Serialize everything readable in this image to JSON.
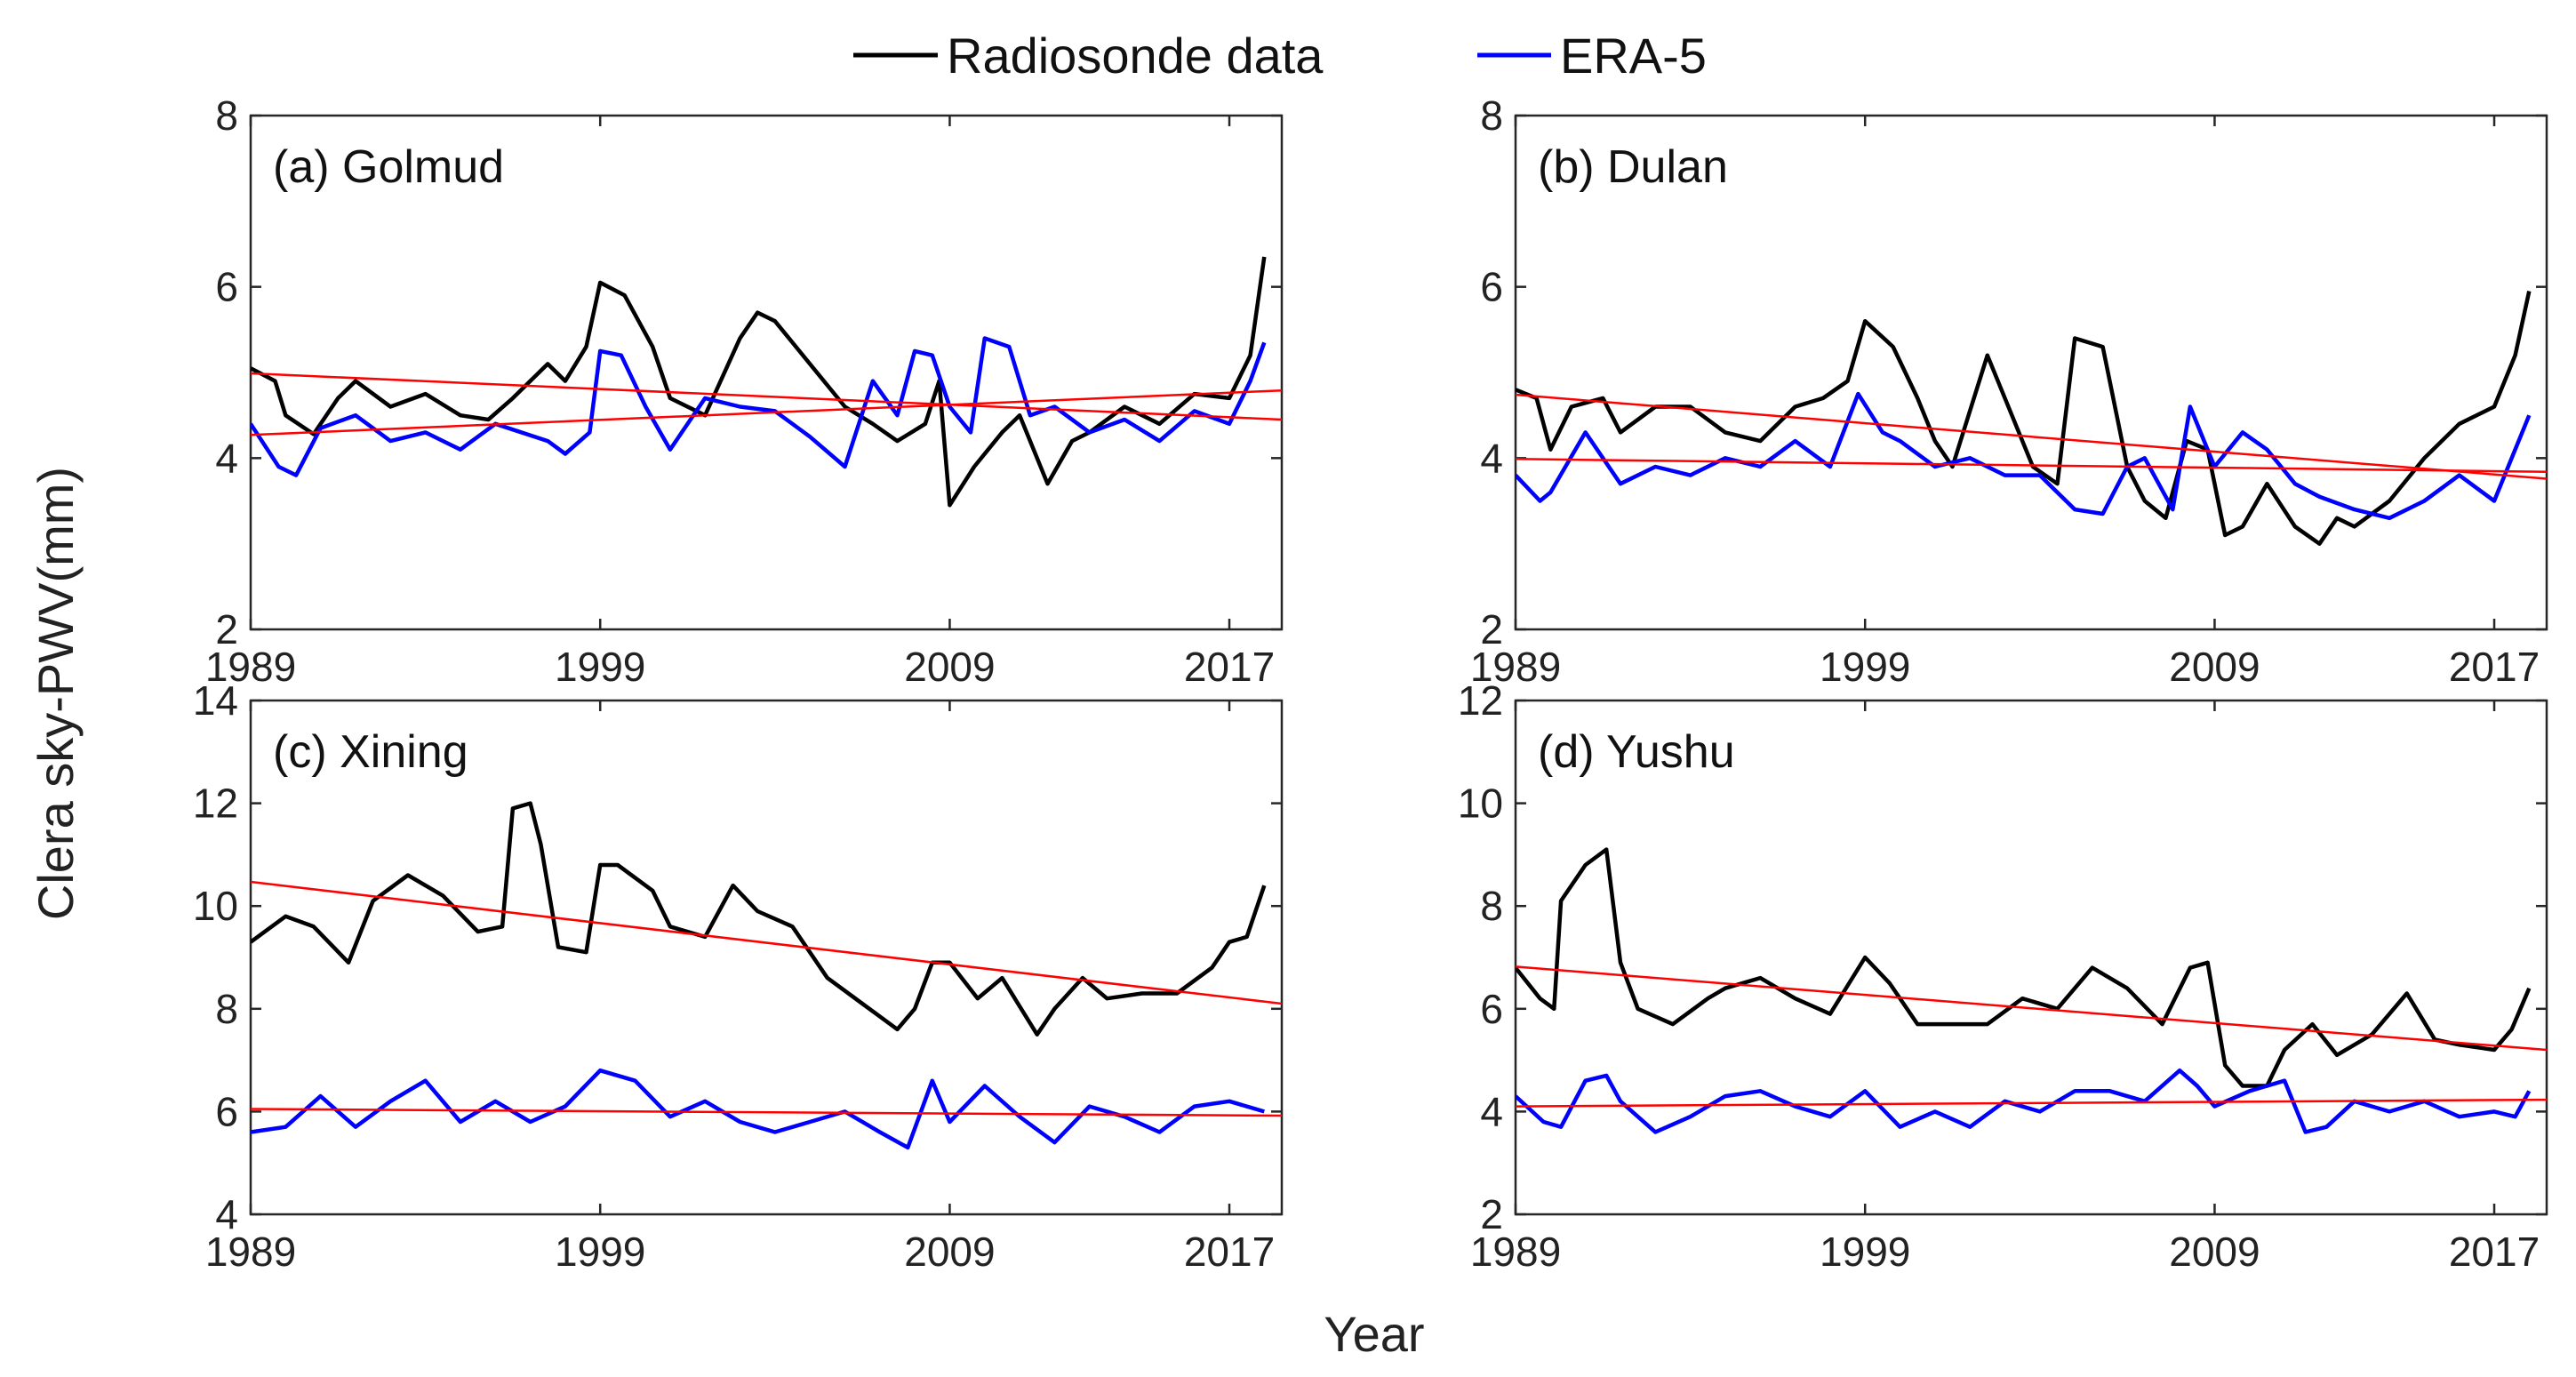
{
  "chart_data": {
    "type": "line",
    "legend": {
      "placement": "top-center",
      "entries": [
        {
          "name": "Radiosonde data",
          "color": "#000000"
        },
        {
          "name": "ERA-5",
          "color": "#0000ff"
        }
      ]
    },
    "ylabel": "Clera sky-PWV(mm)",
    "xlabel": "Year",
    "trend_color": "#ff0000",
    "panels": [
      {
        "title": "(a) Golmud",
        "xlim": [
          1989,
          2018.5
        ],
        "ylim": [
          2,
          8
        ],
        "xticks": [
          1989,
          1999,
          2009,
          2017
        ],
        "yticks": [
          2,
          4,
          6,
          8
        ],
        "series": [
          {
            "name": "Radiosonde data",
            "x": [
              1989,
              1989.7,
              1990,
              1990.8,
              1991.5,
              1992,
              1993,
              1994,
              1995,
              1995.8,
              1996.5,
              1997.5,
              1998,
              1998.6,
              1999,
              1999.7,
              2000.5,
              2001,
              2002,
              2003,
              2003.5,
              2004,
              2005,
              2006,
              2006.8,
              2007.5,
              2008.3,
              2008.7,
              2009,
              2009.7,
              2010.5,
              2011,
              2011.8,
              2012.5,
              2013,
              2014,
              2015,
              2016,
              2017,
              2017.6,
              2018
            ],
            "y": [
              5.05,
              4.9,
              4.5,
              4.28,
              4.7,
              4.9,
              4.6,
              4.75,
              4.5,
              4.45,
              4.7,
              5.1,
              4.9,
              5.3,
              6.05,
              5.9,
              5.3,
              4.7,
              4.5,
              5.4,
              5.7,
              5.6,
              5.1,
              4.6,
              4.4,
              4.2,
              4.4,
              4.9,
              3.45,
              3.9,
              4.3,
              4.5,
              3.7,
              4.2,
              4.3,
              4.6,
              4.4,
              4.75,
              4.7,
              5.2,
              6.35
            ]
          },
          {
            "name": "ERA-5",
            "x": [
              1989,
              1989.8,
              1990.3,
              1991,
              1992,
              1993,
              1994,
              1995,
              1996,
              1997.5,
              1998,
              1998.7,
              1999,
              1999.6,
              2000.3,
              2001,
              2002,
              2003,
              2004,
              2005,
              2006,
              2006.8,
              2007.5,
              2008,
              2008.5,
              2009,
              2009.6,
              2010,
              2010.7,
              2011.3,
              2012,
              2013,
              2014,
              2015,
              2016,
              2017,
              2017.6,
              2018
            ],
            "y": [
              4.4,
              3.9,
              3.8,
              4.35,
              4.5,
              4.2,
              4.3,
              4.1,
              4.4,
              4.2,
              4.05,
              4.3,
              5.25,
              5.2,
              4.6,
              4.1,
              4.7,
              4.6,
              4.55,
              4.25,
              3.9,
              4.9,
              4.5,
              5.25,
              5.2,
              4.6,
              4.3,
              5.4,
              5.3,
              4.5,
              4.6,
              4.3,
              4.45,
              4.2,
              4.55,
              4.4,
              4.9,
              5.35
            ]
          },
          {
            "name": "Radiosonde trend",
            "x": [
              1989,
              2018.5
            ],
            "y": [
              4.99,
              4.45
            ]
          },
          {
            "name": "ERA-5 trend",
            "x": [
              1989,
              2018.5
            ],
            "y": [
              4.27,
              4.79
            ]
          }
        ]
      },
      {
        "title": "(b) Dulan",
        "xlim": [
          1989,
          2018.5
        ],
        "ylim": [
          2,
          8
        ],
        "xticks": [
          1989,
          1999,
          2009,
          2017
        ],
        "yticks": [
          2,
          4,
          6,
          8
        ],
        "series": [
          {
            "name": "Radiosonde data",
            "x": [
              1989,
              1989.6,
              1990,
              1990.6,
              1991.5,
              1992,
              1993,
              1994,
              1995,
              1996,
              1997,
              1997.8,
              1998.5,
              1999,
              1999.8,
              2000.5,
              2001,
              2001.5,
              2002.5,
              2003.2,
              2003.8,
              2004.5,
              2005,
              2005.8,
              2006.5,
              2007,
              2007.6,
              2008.2,
              2008.8,
              2009.3,
              2009.8,
              2010.5,
              2011.3,
              2012,
              2012.5,
              2013,
              2014,
              2015,
              2016,
              2017,
              2017.6,
              2018
            ],
            "y": [
              4.8,
              4.7,
              4.1,
              4.6,
              4.7,
              4.3,
              4.6,
              4.6,
              4.3,
              4.2,
              4.6,
              4.7,
              4.9,
              5.6,
              5.3,
              4.7,
              4.2,
              3.9,
              5.2,
              4.5,
              3.9,
              3.7,
              5.4,
              5.3,
              3.9,
              3.5,
              3.3,
              4.2,
              4.1,
              3.1,
              3.2,
              3.7,
              3.2,
              3.0,
              3.3,
              3.2,
              3.5,
              4.0,
              4.4,
              4.6,
              5.2,
              5.95
            ]
          },
          {
            "name": "ERA-5",
            "x": [
              1989,
              1989.7,
              1990,
              1991,
              1992,
              1993,
              1994,
              1995,
              1996,
              1997,
              1998,
              1998.8,
              1999.5,
              2000,
              2001,
              2002,
              2003,
              2004,
              2005,
              2005.8,
              2006.5,
              2007,
              2007.8,
              2008.3,
              2009,
              2009.8,
              2010.5,
              2011.3,
              2012,
              2013,
              2014,
              2015,
              2016,
              2017,
              2018
            ],
            "y": [
              3.8,
              3.5,
              3.6,
              4.3,
              3.7,
              3.9,
              3.8,
              4.0,
              3.9,
              4.2,
              3.9,
              4.75,
              4.3,
              4.2,
              3.9,
              4.0,
              3.8,
              3.8,
              3.4,
              3.35,
              3.9,
              4.0,
              3.4,
              4.6,
              3.9,
              4.3,
              4.1,
              3.7,
              3.55,
              3.4,
              3.3,
              3.5,
              3.8,
              3.5,
              4.5
            ]
          },
          {
            "name": "Radiosonde trend",
            "x": [
              1989,
              2018.5
            ],
            "y": [
              4.74,
              3.76
            ]
          },
          {
            "name": "ERA-5 trend",
            "x": [
              1989,
              2018.5
            ],
            "y": [
              3.99,
              3.84
            ]
          }
        ]
      },
      {
        "title": "(c) Xining",
        "xlim": [
          1989,
          2018.5
        ],
        "ylim": [
          4,
          14
        ],
        "xticks": [
          1989,
          1999,
          2009,
          2017
        ],
        "yticks": [
          4,
          6,
          8,
          10,
          12,
          14
        ],
        "series": [
          {
            "name": "Radiosonde data",
            "x": [
              1989,
              1990,
              1990.8,
              1991.8,
              1992.5,
              1993.5,
              1994.5,
              1995.5,
              1996.2,
              1996.5,
              1997,
              1997.3,
              1997.8,
              1998.6,
              1999,
              1999.5,
              2000.5,
              2001,
              2002,
              2002.8,
              2003.5,
              2004.5,
              2005.5,
              2006.5,
              2007.5,
              2008,
              2008.5,
              2009,
              2009.8,
              2010.5,
              2011.5,
              2012,
              2012.8,
              2013.5,
              2014.5,
              2015.5,
              2016.5,
              2017,
              2017.5,
              2018
            ],
            "y": [
              9.3,
              9.8,
              9.6,
              8.9,
              10.1,
              10.6,
              10.2,
              9.5,
              9.6,
              11.9,
              12.0,
              11.2,
              9.2,
              9.1,
              10.8,
              10.8,
              10.3,
              9.6,
              9.4,
              10.4,
              9.9,
              9.6,
              8.6,
              8.1,
              7.6,
              8.0,
              8.9,
              8.9,
              8.2,
              8.6,
              7.5,
              8.0,
              8.6,
              8.2,
              8.3,
              8.3,
              8.8,
              9.3,
              9.4,
              10.4
            ]
          },
          {
            "name": "ERA-5",
            "x": [
              1989,
              1990,
              1991,
              1992,
              1993,
              1994,
              1995,
              1996,
              1997,
              1998,
              1999,
              2000,
              2001,
              2002,
              2003,
              2004,
              2005,
              2006,
              2007,
              2007.8,
              2008.5,
              2009,
              2010,
              2011,
              2012,
              2013,
              2014,
              2015,
              2016,
              2017,
              2018
            ],
            "y": [
              5.6,
              5.7,
              6.3,
              5.7,
              6.2,
              6.6,
              5.8,
              6.2,
              5.8,
              6.1,
              6.8,
              6.6,
              5.9,
              6.2,
              5.8,
              5.6,
              5.8,
              6.0,
              5.6,
              5.3,
              6.6,
              5.8,
              6.5,
              5.9,
              5.4,
              6.1,
              5.9,
              5.6,
              6.1,
              6.2,
              6.0
            ]
          },
          {
            "name": "Radiosonde trend",
            "x": [
              1989,
              2018.5
            ],
            "y": [
              10.47,
              8.1
            ]
          },
          {
            "name": "ERA-5 trend",
            "x": [
              1989,
              2018.5
            ],
            "y": [
              6.05,
              5.92
            ]
          }
        ]
      },
      {
        "title": "(d) Yushu",
        "xlim": [
          1989,
          2018.5
        ],
        "ylim": [
          2,
          12
        ],
        "xticks": [
          1989,
          1999,
          2009,
          2017
        ],
        "yticks": [
          2,
          4,
          6,
          8,
          10,
          12
        ],
        "series": [
          {
            "name": "Radiosonde data",
            "x": [
              1989,
              1989.7,
              1990.1,
              1990.3,
              1991,
              1991.6,
              1992,
              1992.5,
              1993.5,
              1994.5,
              1995,
              1996,
              1997,
              1998,
              1999,
              1999.7,
              2000.5,
              2001.5,
              2002.5,
              2003.5,
              2004.5,
              2005.5,
              2006.5,
              2007.5,
              2008.3,
              2008.8,
              2009.3,
              2009.8,
              2010.5,
              2011,
              2011.8,
              2012.5,
              2013.5,
              2014.5,
              2015.3,
              2016,
              2017,
              2017.5,
              2018
            ],
            "y": [
              6.8,
              6.2,
              6.0,
              8.1,
              8.8,
              9.1,
              6.9,
              6.0,
              5.7,
              6.2,
              6.4,
              6.6,
              6.2,
              5.9,
              7.0,
              6.5,
              5.7,
              5.7,
              5.7,
              6.2,
              6.0,
              6.8,
              6.4,
              5.7,
              6.8,
              6.9,
              4.9,
              4.5,
              4.5,
              5.2,
              5.7,
              5.1,
              5.5,
              6.3,
              5.4,
              5.3,
              5.2,
              5.6,
              6.4
            ]
          },
          {
            "name": "ERA-5",
            "x": [
              1989,
              1989.8,
              1990.3,
              1991,
              1991.6,
              1992,
              1993,
              1994,
              1995,
              1996,
              1997,
              1998,
              1999,
              2000,
              2001,
              2002,
              2003,
              2004,
              2005,
              2006,
              2007,
              2008,
              2008.5,
              2009,
              2010,
              2011,
              2011.6,
              2012.2,
              2013,
              2014,
              2015,
              2016,
              2017,
              2017.6,
              2018
            ],
            "y": [
              4.3,
              3.8,
              3.7,
              4.6,
              4.7,
              4.2,
              3.6,
              3.9,
              4.3,
              4.4,
              4.1,
              3.9,
              4.4,
              3.7,
              4.0,
              3.7,
              4.2,
              4.0,
              4.4,
              4.4,
              4.2,
              4.8,
              4.5,
              4.1,
              4.4,
              4.6,
              3.6,
              3.7,
              4.2,
              4.0,
              4.2,
              3.9,
              4.0,
              3.9,
              4.4
            ]
          },
          {
            "name": "Radiosonde trend",
            "x": [
              1989,
              2018.5
            ],
            "y": [
              6.82,
              5.2
            ]
          },
          {
            "name": "ERA-5 trend",
            "x": [
              1989,
              2018.5
            ],
            "y": [
              4.1,
              4.23
            ]
          }
        ]
      }
    ]
  }
}
